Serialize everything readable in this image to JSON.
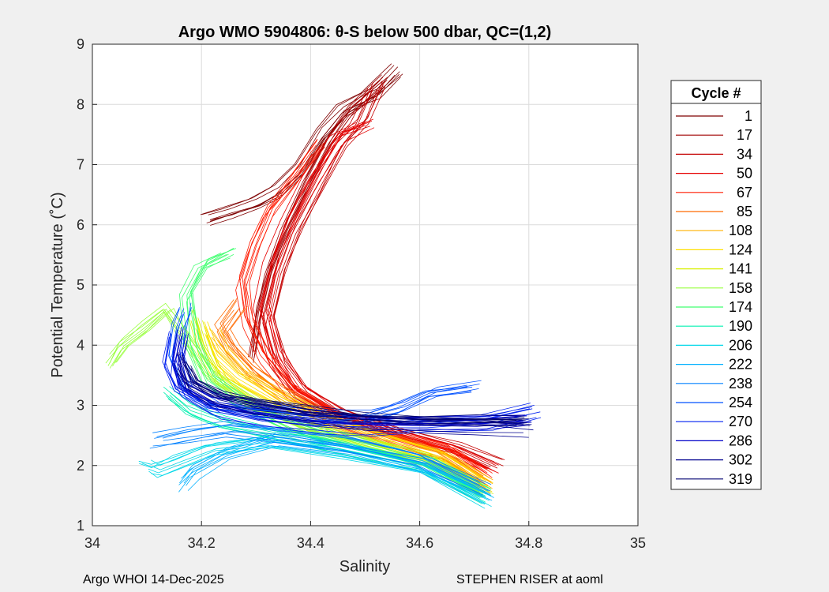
{
  "chart_data": {
    "type": "line",
    "title": "Argo WMO 5904806: θ-S below 500 dbar,  QC=(1,2)",
    "xlabel": "Salinity",
    "ylabel": "Potential Temperature (˚C)",
    "xlim": [
      34,
      35
    ],
    "ylim": [
      1,
      9
    ],
    "xticks": [
      "34",
      "34.2",
      "34.4",
      "34.6",
      "34.8",
      "35"
    ],
    "yticks": [
      "1",
      "2",
      "3",
      "4",
      "5",
      "6",
      "7",
      "8",
      "9"
    ],
    "grid": true,
    "legend": {
      "title": "Cycle #",
      "placement": "right-outside",
      "entries": [
        {
          "label": "1",
          "color": "#7f0000"
        },
        {
          "label": "17",
          "color": "#a00000"
        },
        {
          "label": "34",
          "color": "#c40000"
        },
        {
          "label": "50",
          "color": "#e60000"
        },
        {
          "label": "67",
          "color": "#ff1a00"
        },
        {
          "label": "85",
          "color": "#ff6a00"
        },
        {
          "label": "108",
          "color": "#ffb000"
        },
        {
          "label": "124",
          "color": "#ffe000"
        },
        {
          "label": "141",
          "color": "#d8f000"
        },
        {
          "label": "158",
          "color": "#9aff40"
        },
        {
          "label": "174",
          "color": "#40ff70"
        },
        {
          "label": "190",
          "color": "#00f0b0"
        },
        {
          "label": "206",
          "color": "#00d8e8"
        },
        {
          "label": "222",
          "color": "#00b0ff"
        },
        {
          "label": "238",
          "color": "#0080ff"
        },
        {
          "label": "254",
          "color": "#0050ff"
        },
        {
          "label": "270",
          "color": "#0020f0"
        },
        {
          "label": "286",
          "color": "#0000c8"
        },
        {
          "label": "302",
          "color": "#00008f"
        },
        {
          "label": "319",
          "color": "#000070"
        }
      ]
    },
    "series": [
      {
        "name": "1",
        "color": "#7f0000",
        "points": [
          [
            34.21,
            6.1
          ],
          [
            34.25,
            6.2
          ],
          [
            34.3,
            6.35
          ],
          [
            34.34,
            6.55
          ],
          [
            34.38,
            6.9
          ],
          [
            34.42,
            7.5
          ],
          [
            34.46,
            7.9
          ],
          [
            34.5,
            8.1
          ],
          [
            34.52,
            8.2
          ],
          [
            34.56,
            8.55
          ]
        ]
      },
      {
        "name": "17",
        "color": "#a00000",
        "points": [
          [
            34.3,
            3.8
          ],
          [
            34.31,
            4.5
          ],
          [
            34.33,
            5.2
          ],
          [
            34.36,
            5.9
          ],
          [
            34.4,
            6.7
          ],
          [
            34.44,
            7.4
          ],
          [
            34.48,
            7.9
          ],
          [
            34.54,
            8.4
          ]
        ]
      },
      {
        "name": "34",
        "color": "#c40000",
        "points": [
          [
            34.74,
            2.0
          ],
          [
            34.66,
            2.3
          ],
          [
            34.55,
            2.55
          ],
          [
            34.45,
            2.85
          ],
          [
            34.38,
            3.2
          ],
          [
            34.34,
            3.7
          ],
          [
            34.32,
            4.4
          ],
          [
            34.34,
            5.2
          ],
          [
            34.37,
            5.9
          ],
          [
            34.41,
            6.6
          ],
          [
            34.45,
            7.3
          ],
          [
            34.49,
            7.7
          ],
          [
            34.52,
            8.3
          ]
        ]
      },
      {
        "name": "50",
        "color": "#e60000",
        "points": [
          [
            34.73,
            1.95
          ],
          [
            34.65,
            2.28
          ],
          [
            34.54,
            2.55
          ],
          [
            34.44,
            2.9
          ],
          [
            34.37,
            3.3
          ],
          [
            34.33,
            3.9
          ],
          [
            34.31,
            4.6
          ],
          [
            34.33,
            5.4
          ],
          [
            34.36,
            6.1
          ],
          [
            34.4,
            6.8
          ],
          [
            34.45,
            7.5
          ],
          [
            34.5,
            7.7
          ]
        ]
      },
      {
        "name": "67",
        "color": "#ff1a00",
        "points": [
          [
            34.73,
            1.8
          ],
          [
            34.66,
            2.22
          ],
          [
            34.55,
            2.5
          ],
          [
            34.45,
            2.8
          ],
          [
            34.37,
            3.25
          ],
          [
            34.32,
            3.8
          ],
          [
            34.29,
            4.4
          ],
          [
            34.28,
            5.0
          ],
          [
            34.3,
            5.6
          ],
          [
            34.33,
            6.2
          ],
          [
            34.38,
            6.8
          ],
          [
            34.42,
            7.3
          ]
        ]
      },
      {
        "name": "85",
        "color": "#ff6a00",
        "points": [
          [
            34.72,
            1.75
          ],
          [
            34.64,
            2.2
          ],
          [
            34.54,
            2.48
          ],
          [
            34.44,
            2.8
          ],
          [
            34.36,
            3.2
          ],
          [
            34.3,
            3.6
          ],
          [
            34.26,
            4.0
          ],
          [
            34.24,
            4.3
          ],
          [
            34.27,
            4.7
          ]
        ]
      },
      {
        "name": "108",
        "color": "#ffb000",
        "points": [
          [
            34.72,
            1.7
          ],
          [
            34.64,
            2.16
          ],
          [
            34.53,
            2.45
          ],
          [
            34.43,
            2.75
          ],
          [
            34.34,
            3.15
          ],
          [
            34.28,
            3.5
          ],
          [
            34.24,
            3.9
          ],
          [
            34.22,
            4.2
          ]
        ]
      },
      {
        "name": "124",
        "color": "#ffe000",
        "points": [
          [
            34.72,
            1.65
          ],
          [
            34.63,
            2.12
          ],
          [
            34.52,
            2.42
          ],
          [
            34.42,
            2.7
          ],
          [
            34.33,
            3.1
          ],
          [
            34.26,
            3.45
          ],
          [
            34.22,
            3.8
          ],
          [
            34.2,
            4.3
          ]
        ]
      },
      {
        "name": "141",
        "color": "#d8f000",
        "points": [
          [
            34.72,
            1.6
          ],
          [
            34.62,
            2.1
          ],
          [
            34.5,
            2.4
          ],
          [
            34.4,
            2.65
          ],
          [
            34.31,
            3.0
          ],
          [
            34.24,
            3.4
          ],
          [
            34.21,
            3.9
          ],
          [
            34.19,
            4.5
          ]
        ]
      },
      {
        "name": "158",
        "color": "#9aff40",
        "points": [
          [
            34.72,
            1.55
          ],
          [
            34.62,
            2.06
          ],
          [
            34.5,
            2.35
          ],
          [
            34.38,
            2.65
          ],
          [
            34.29,
            3.05
          ],
          [
            34.22,
            3.5
          ],
          [
            34.17,
            4.2
          ],
          [
            34.14,
            4.6
          ],
          [
            34.1,
            4.3
          ],
          [
            34.06,
            4.0
          ],
          [
            34.04,
            3.7
          ]
        ]
      },
      {
        "name": "174",
        "color": "#40ff70",
        "points": [
          [
            34.72,
            1.5
          ],
          [
            34.61,
            2.02
          ],
          [
            34.48,
            2.32
          ],
          [
            34.36,
            2.6
          ],
          [
            34.27,
            3.0
          ],
          [
            34.21,
            3.4
          ],
          [
            34.18,
            4.0
          ],
          [
            34.17,
            4.8
          ],
          [
            34.2,
            5.3
          ],
          [
            34.25,
            5.5
          ]
        ]
      },
      {
        "name": "190",
        "color": "#00f0b0",
        "points": [
          [
            34.72,
            1.45
          ],
          [
            34.6,
            2.0
          ],
          [
            34.46,
            2.28
          ],
          [
            34.34,
            2.5
          ],
          [
            34.24,
            2.7
          ],
          [
            34.18,
            2.9
          ],
          [
            34.14,
            3.2
          ]
        ]
      },
      {
        "name": "206",
        "color": "#00d8e8",
        "points": [
          [
            34.72,
            1.42
          ],
          [
            34.6,
            1.98
          ],
          [
            34.45,
            2.25
          ],
          [
            34.32,
            2.4
          ],
          [
            34.22,
            2.3
          ],
          [
            34.16,
            2.1
          ],
          [
            34.12,
            1.95
          ],
          [
            34.1,
            2.0
          ]
        ]
      },
      {
        "name": "222",
        "color": "#00b0ff",
        "points": [
          [
            34.72,
            1.5
          ],
          [
            34.6,
            2.0
          ],
          [
            34.46,
            2.3
          ],
          [
            34.33,
            2.45
          ],
          [
            34.24,
            2.2
          ],
          [
            34.18,
            1.9
          ],
          [
            34.16,
            1.7
          ]
        ]
      },
      {
        "name": "238",
        "color": "#0080ff",
        "points": [
          [
            34.72,
            1.6
          ],
          [
            34.6,
            2.1
          ],
          [
            34.47,
            2.35
          ],
          [
            34.34,
            2.5
          ],
          [
            34.25,
            2.6
          ],
          [
            34.18,
            2.5
          ],
          [
            34.12,
            2.4
          ]
        ]
      },
      {
        "name": "254",
        "color": "#0050ff",
        "points": [
          [
            34.7,
            3.3
          ],
          [
            34.62,
            3.2
          ],
          [
            34.56,
            2.95
          ],
          [
            34.5,
            2.8
          ],
          [
            34.4,
            2.8
          ],
          [
            34.3,
            2.9
          ],
          [
            34.22,
            3.0
          ],
          [
            34.17,
            3.3
          ],
          [
            34.15,
            3.8
          ],
          [
            34.16,
            4.3
          ],
          [
            34.17,
            4.6
          ]
        ]
      },
      {
        "name": "270",
        "color": "#0020f0",
        "points": [
          [
            34.81,
            2.9
          ],
          [
            34.72,
            2.7
          ],
          [
            34.6,
            2.65
          ],
          [
            34.5,
            2.6
          ],
          [
            34.4,
            2.65
          ],
          [
            34.3,
            2.75
          ],
          [
            34.22,
            2.9
          ],
          [
            34.16,
            3.2
          ],
          [
            34.14,
            3.6
          ],
          [
            34.15,
            4.1
          ]
        ]
      },
      {
        "name": "286",
        "color": "#0000c8",
        "points": [
          [
            34.8,
            2.75
          ],
          [
            34.7,
            2.7
          ],
          [
            34.6,
            2.7
          ],
          [
            34.5,
            2.72
          ],
          [
            34.4,
            2.78
          ],
          [
            34.3,
            2.9
          ],
          [
            34.22,
            3.05
          ],
          [
            34.17,
            3.3
          ],
          [
            34.16,
            3.7
          ],
          [
            34.17,
            4.2
          ]
        ]
      },
      {
        "name": "302",
        "color": "#00008f",
        "points": [
          [
            34.8,
            2.6
          ],
          [
            34.7,
            2.65
          ],
          [
            34.6,
            2.68
          ],
          [
            34.5,
            2.72
          ],
          [
            34.4,
            2.82
          ],
          [
            34.3,
            2.95
          ],
          [
            34.23,
            3.1
          ],
          [
            34.18,
            3.35
          ],
          [
            34.16,
            3.8
          ]
        ]
      },
      {
        "name": "319",
        "color": "#000070",
        "points": [
          [
            34.79,
            2.7
          ],
          [
            34.7,
            2.7
          ],
          [
            34.6,
            2.7
          ],
          [
            34.5,
            2.75
          ],
          [
            34.4,
            2.85
          ],
          [
            34.31,
            2.98
          ],
          [
            34.24,
            3.1
          ],
          [
            34.19,
            3.3
          ],
          [
            34.17,
            3.6
          ]
        ]
      }
    ]
  },
  "footer": {
    "left": "Argo WHOI 14-Dec-2025",
    "right": "STEPHEN RISER at aoml"
  }
}
